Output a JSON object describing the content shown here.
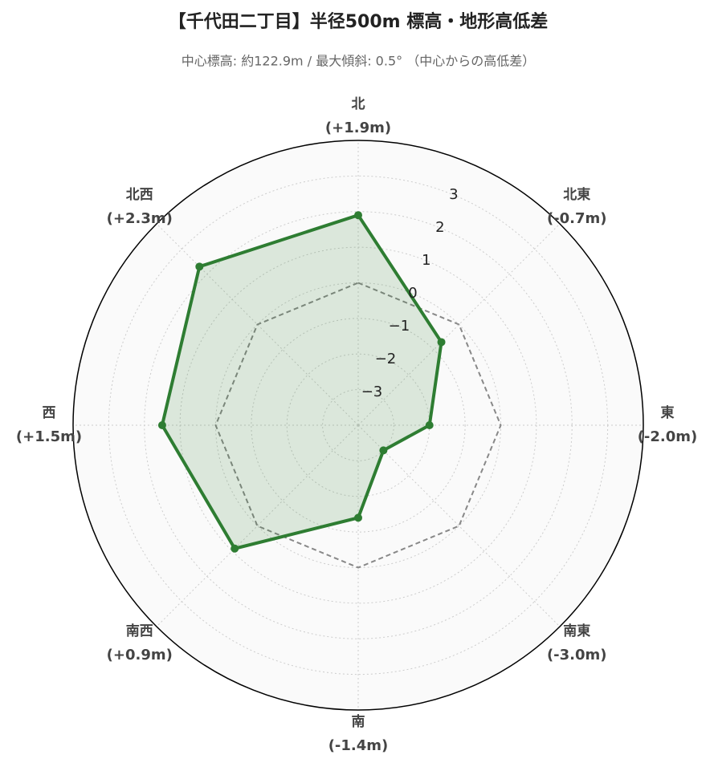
{
  "chart_data": {
    "type": "radar",
    "title": "【千代田二丁目】半径500m 標高・地形高低差",
    "subtitle": "中心標高: 約122.9m / 最大傾斜: 0.5° （中心からの高低差）",
    "categories": [
      "北",
      "北東",
      "東",
      "南東",
      "南",
      "南西",
      "西",
      "北西"
    ],
    "values": [
      1.9,
      -0.7,
      -2.0,
      -3.0,
      -1.4,
      0.9,
      1.5,
      2.3
    ],
    "value_labels": [
      "(+1.9m)",
      "(-0.7m)",
      "(-2.0m)",
      "(-3.0m)",
      "(-1.4m)",
      "(+0.9m)",
      "(+1.5m)",
      "(+2.3m)"
    ],
    "color": "#2e7d32",
    "reference_line": {
      "value": 0,
      "color": "#888888"
    },
    "rlim": [
      -4,
      4
    ],
    "rticks": [
      {
        "value": -3,
        "label": "−3"
      },
      {
        "value": -2,
        "label": "−2"
      },
      {
        "value": -1,
        "label": "−1"
      },
      0,
      1,
      2,
      3
    ],
    "grid": true
  }
}
